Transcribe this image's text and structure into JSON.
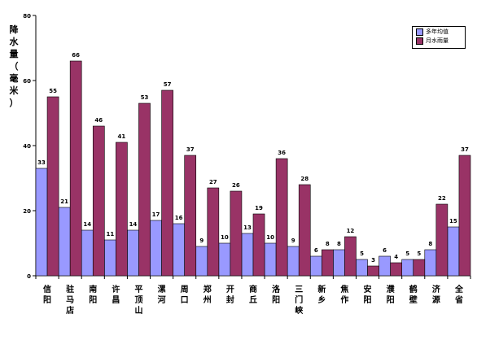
{
  "chart_data": {
    "type": "bar",
    "ylabel": "降水量（毫米）",
    "ylim": [
      0,
      80
    ],
    "yticks": [
      0,
      20,
      40,
      60,
      80
    ],
    "grid": false,
    "legend_position": "top-right",
    "categories": [
      "信阳",
      "驻马店",
      "南阳",
      "许昌",
      "平顶山",
      "漯河",
      "周口",
      "郑州",
      "开封",
      "商丘",
      "洛阳",
      "三门峡",
      "新乡",
      "焦作",
      "安阳",
      "濮阳",
      "鹤壁",
      "济源",
      "全省"
    ],
    "series": [
      {
        "name": "多年均值",
        "color": "#9999ff",
        "values": [
          33,
          21,
          14,
          11,
          14,
          17,
          16,
          9,
          10,
          13,
          10,
          9,
          6,
          8,
          5,
          6,
          5,
          8,
          15
        ]
      },
      {
        "name": "月水雨量",
        "color": "#993366",
        "values": [
          55,
          66,
          46,
          41,
          53,
          57,
          37,
          27,
          26,
          19,
          36,
          28,
          8,
          12,
          3,
          4,
          5,
          22,
          37
        ]
      }
    ]
  }
}
